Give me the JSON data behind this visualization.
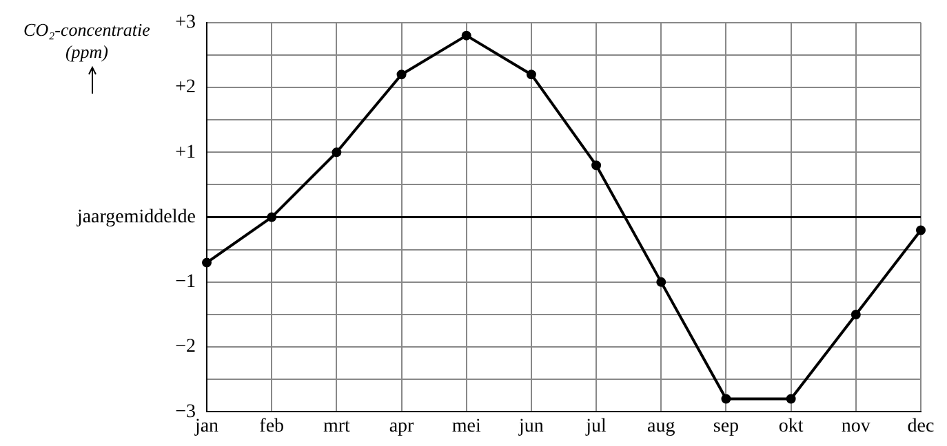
{
  "chart_data": {
    "type": "line",
    "ylabel": "CO₂-concentratie (ppm)",
    "categories": [
      "jan",
      "feb",
      "mrt",
      "apr",
      "mei",
      "jun",
      "jul",
      "aug",
      "sep",
      "okt",
      "nov",
      "dec"
    ],
    "series": [
      {
        "color": "#000000",
        "values": [
          -0.7,
          0,
          1.0,
          2.2,
          2.8,
          2.2,
          0.8,
          -1.0,
          -2.8,
          -2.8,
          -1.5,
          -0.2
        ]
      }
    ],
    "ylim": [
      -3,
      3
    ],
    "yticks": [
      {
        "value": -3,
        "label": "−3"
      },
      {
        "value": -2.5,
        "label": null
      },
      {
        "value": -2,
        "label": "−2"
      },
      {
        "value": -1.5,
        "label": null
      },
      {
        "value": -1,
        "label": "−1"
      },
      {
        "value": -0.5,
        "label": null
      },
      {
        "value": 0,
        "label": "jaargemiddelde"
      },
      {
        "value": 0.5,
        "label": null
      },
      {
        "value": 1,
        "label": "+1"
      },
      {
        "value": 1.5,
        "label": null
      },
      {
        "value": 2,
        "label": "+2"
      },
      {
        "value": 2.5,
        "label": null
      },
      {
        "value": 3,
        "label": "+3"
      }
    ],
    "ref_lines": [
      {
        "axis": "y",
        "value": 0,
        "color": "#000000"
      }
    ],
    "grid": true,
    "legend": false,
    "marker": "circle",
    "line_style": "solid"
  }
}
